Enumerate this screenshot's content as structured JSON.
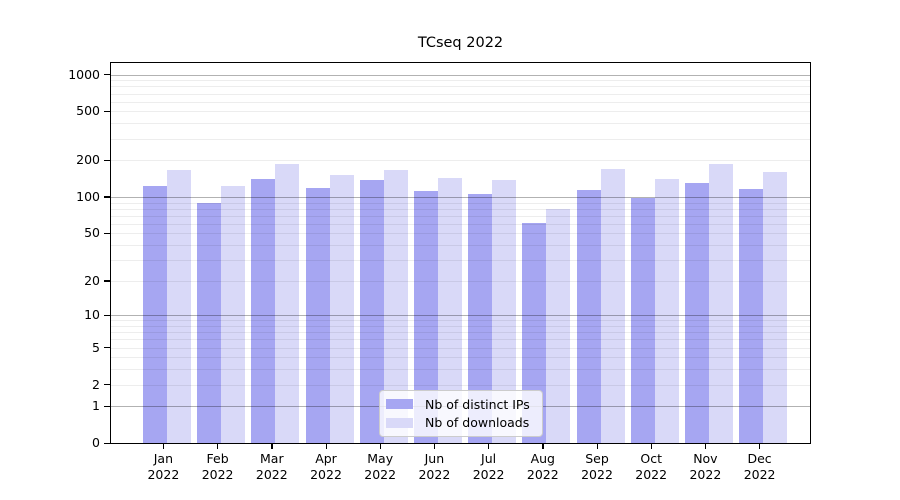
{
  "chart_data": {
    "type": "bar",
    "title": "TCseq 2022",
    "categories": [
      "Jan 2022",
      "Feb 2022",
      "Mar 2022",
      "Apr 2022",
      "May 2022",
      "Jun 2022",
      "Jul 2022",
      "Aug 2022",
      "Sep 2022",
      "Oct 2022",
      "Nov 2022",
      "Dec 2022"
    ],
    "series": [
      {
        "name": "Nb of distinct IPs",
        "color": "#a6a6f2",
        "values": [
          124,
          89,
          140,
          119,
          139,
          113,
          105,
          61,
          114,
          98,
          130,
          117
        ]
      },
      {
        "name": "Nb of downloads",
        "color": "#d9d9f8",
        "values": [
          168,
          123,
          187,
          152,
          168,
          143,
          139,
          80,
          170,
          140,
          186,
          160
        ]
      }
    ],
    "y_axis": {
      "scale": "log1p",
      "ticks": [
        0,
        1,
        2,
        5,
        10,
        20,
        50,
        100,
        200,
        500,
        1000
      ],
      "range": [
        0,
        1266
      ],
      "grid": "minor+major"
    },
    "x_axis": {
      "tick_label_lines": 2
    },
    "legend": {
      "position": "lower center-left",
      "frame": true
    },
    "colors": {
      "background": "#ffffff",
      "frame": "#000000",
      "major_grid": "#b3b3b3",
      "minor_grid": "#ededed",
      "legend_border": "#cccccc"
    }
  }
}
